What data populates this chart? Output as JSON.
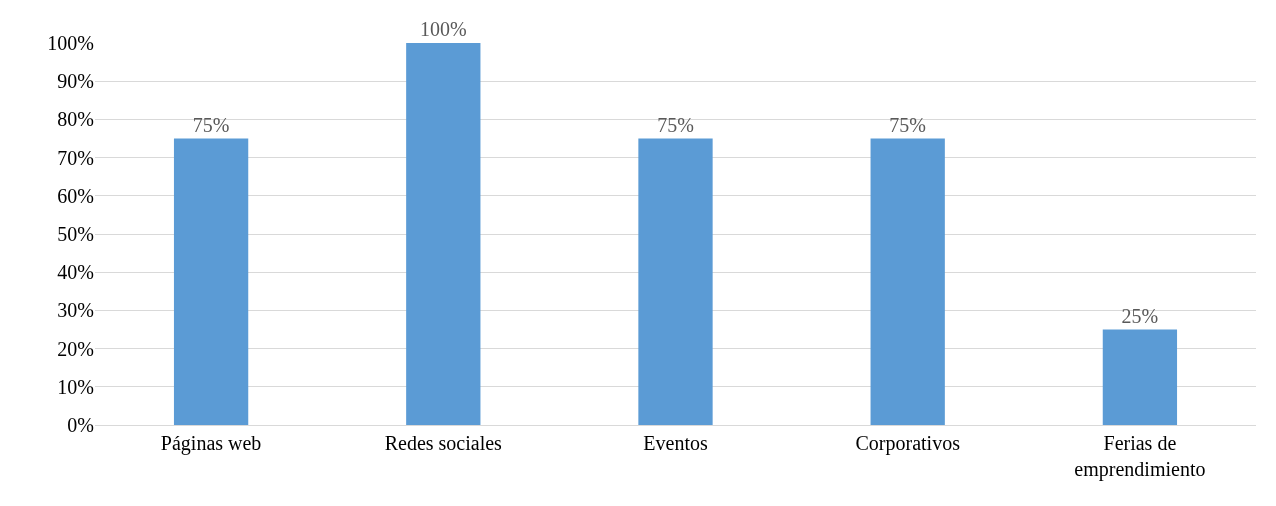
{
  "chart_data": {
    "type": "bar",
    "categories": [
      "Páginas web",
      "Redes sociales",
      "Eventos",
      "Corporativos",
      "Ferias de emprendimiento"
    ],
    "values": [
      75,
      100,
      75,
      75,
      25
    ],
    "value_labels": [
      "75%",
      "100%",
      "75%",
      "75%",
      "25%"
    ],
    "color": "#5b9bd5",
    "ylim": [
      0,
      100
    ],
    "yticks": [
      {
        "value": 0,
        "label": "0%"
      },
      {
        "value": 10,
        "label": "10%"
      },
      {
        "value": 20,
        "label": "20%"
      },
      {
        "value": 30,
        "label": "30%"
      },
      {
        "value": 40,
        "label": "40%"
      },
      {
        "value": 50,
        "label": "50%"
      },
      {
        "value": 60,
        "label": "60%"
      },
      {
        "value": 70,
        "label": "70%"
      },
      {
        "value": 80,
        "label": "80%"
      },
      {
        "value": 90,
        "label": "90%"
      },
      {
        "value": 100,
        "label": "100%"
      }
    ],
    "grid": "y"
  }
}
